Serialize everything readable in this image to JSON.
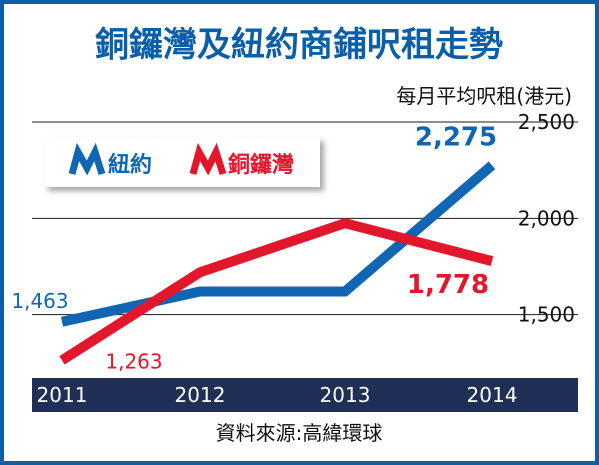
{
  "chart_data": {
    "type": "line",
    "title": "銅鑼灣及紐約商鋪呎租走勢",
    "ylabel": "每月平均呎租(港元)",
    "xlabel": "",
    "categories": [
      "2011",
      "2012",
      "2013",
      "2014"
    ],
    "ylim": [
      1000,
      2500
    ],
    "yticks": [
      "1,500",
      "2,000",
      "2,500"
    ],
    "grid": true,
    "legend_position": "top-left",
    "series": [
      {
        "name": "紐約",
        "color": "#1166b3",
        "values": [
          1463,
          1620,
          1620,
          2275
        ]
      },
      {
        "name": "銅鑼灣",
        "color": "#e3172c",
        "values": [
          1263,
          1720,
          1975,
          1778
        ]
      }
    ],
    "annotations": [
      {
        "text": "1,463",
        "series": 0,
        "point": 0
      },
      {
        "text": "2,275",
        "series": 0,
        "point": 3
      },
      {
        "text": "1,263",
        "series": 1,
        "point": 0
      },
      {
        "text": "1,778",
        "series": 1,
        "point": 3
      }
    ],
    "source": "資料來源:高緯環球"
  },
  "colors": {
    "frame": "#0b5fa8",
    "axis_band": "#1f2f55",
    "grid": "#1a1a1a",
    "title": "#0b5fa8"
  }
}
